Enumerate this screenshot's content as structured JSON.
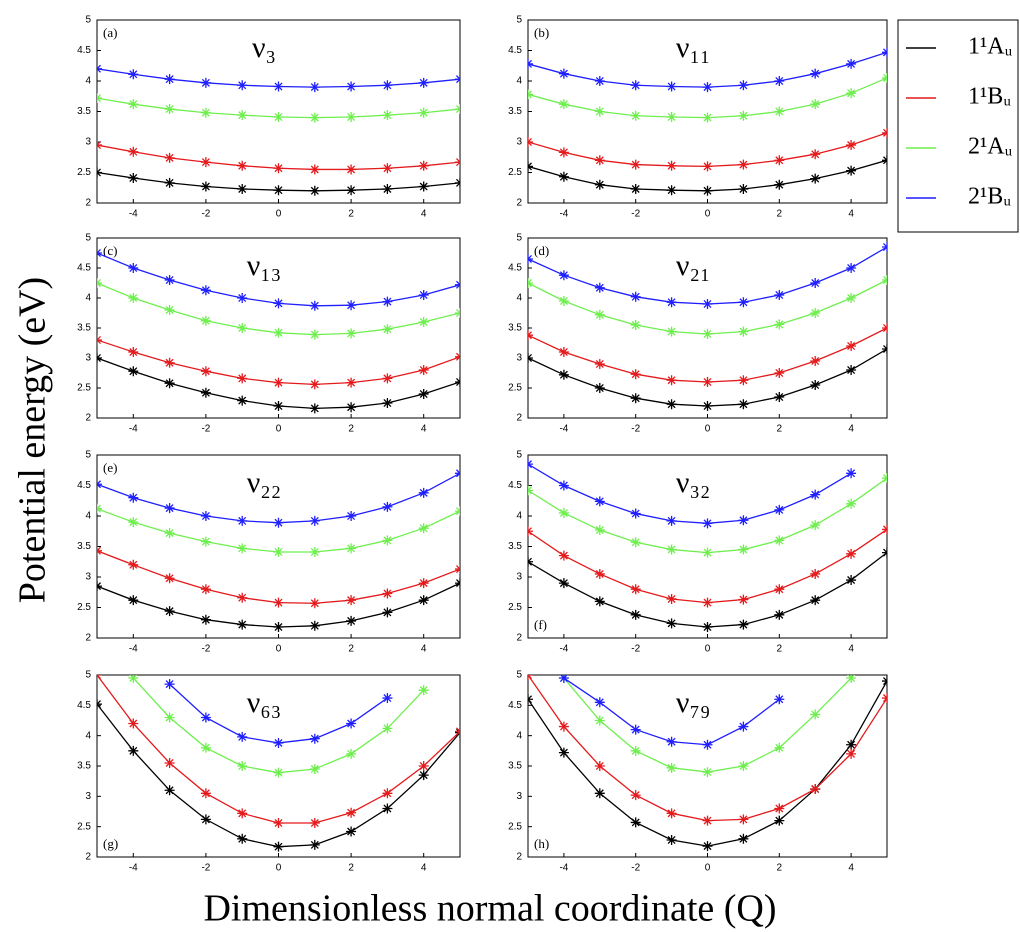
{
  "ylabel": "Potential energy (eV)",
  "xlabel": "Dimensionless normal coordinate (Q)",
  "chart_data": [
    {
      "type": "line",
      "title": "ν₃",
      "label": "(a)",
      "label_position": "top-left",
      "markers": "asterisk",
      "x": [
        -5,
        -4,
        -3,
        -2,
        -1,
        0,
        1,
        2,
        3,
        4,
        5
      ],
      "xlim": [
        -5,
        5
      ],
      "xticks": [
        -4,
        -2,
        0,
        2,
        4
      ],
      "ylim": [
        2,
        5
      ],
      "yticks": [
        2,
        2.5,
        3,
        3.5,
        4,
        4.5,
        5
      ],
      "series": [
        {
          "name": "1¹Aᵤ",
          "color": "#000000",
          "values": [
            2.5,
            2.41,
            2.33,
            2.27,
            2.23,
            2.21,
            2.2,
            2.21,
            2.23,
            2.27,
            2.33
          ]
        },
        {
          "name": "1¹Bᵤ",
          "color": "#e41a1c",
          "values": [
            2.95,
            2.84,
            2.74,
            2.67,
            2.61,
            2.57,
            2.55,
            2.55,
            2.57,
            2.61,
            2.67
          ]
        },
        {
          "name": "2¹Aᵤ",
          "color": "#6fef4f",
          "values": [
            3.72,
            3.62,
            3.54,
            3.48,
            3.44,
            3.41,
            3.4,
            3.41,
            3.44,
            3.48,
            3.54
          ]
        },
        {
          "name": "2¹Bᵤ",
          "color": "#1f1fff",
          "values": [
            4.2,
            4.11,
            4.03,
            3.97,
            3.93,
            3.91,
            3.9,
            3.91,
            3.93,
            3.97,
            4.03
          ]
        }
      ]
    },
    {
      "type": "line",
      "title": "ν₁₁",
      "label": "(b)",
      "label_position": "top-left",
      "markers": "asterisk",
      "x": [
        -5,
        -4,
        -3,
        -2,
        -1,
        0,
        1,
        2,
        3,
        4,
        5
      ],
      "xlim": [
        -5,
        5
      ],
      "xticks": [
        -4,
        -2,
        0,
        2,
        4
      ],
      "ylim": [
        2,
        5
      ],
      "yticks": [
        2,
        2.5,
        3,
        3.5,
        4,
        4.5,
        5
      ],
      "series": [
        {
          "name": "1¹Aᵤ",
          "color": "#000000",
          "values": [
            2.6,
            2.43,
            2.3,
            2.23,
            2.21,
            2.2,
            2.23,
            2.3,
            2.4,
            2.53,
            2.7
          ]
        },
        {
          "name": "1¹Bᵤ",
          "color": "#e41a1c",
          "values": [
            3.0,
            2.83,
            2.7,
            2.63,
            2.61,
            2.6,
            2.63,
            2.7,
            2.8,
            2.95,
            3.15
          ]
        },
        {
          "name": "2¹Aᵤ",
          "color": "#6fef4f",
          "values": [
            3.78,
            3.62,
            3.5,
            3.43,
            3.41,
            3.4,
            3.43,
            3.5,
            3.62,
            3.8,
            4.05
          ]
        },
        {
          "name": "2¹Bᵤ",
          "color": "#1f1fff",
          "values": [
            4.28,
            4.12,
            4.0,
            3.93,
            3.91,
            3.9,
            3.93,
            4.0,
            4.12,
            4.28,
            4.47
          ]
        }
      ]
    },
    {
      "type": "line",
      "title": "ν₁₃",
      "label": "(c)",
      "label_position": "top-left",
      "markers": "asterisk",
      "x": [
        -5,
        -4,
        -3,
        -2,
        -1,
        0,
        1,
        2,
        3,
        4,
        5
      ],
      "xlim": [
        -5,
        5
      ],
      "xticks": [
        -4,
        -2,
        0,
        2,
        4
      ],
      "ylim": [
        2,
        5
      ],
      "yticks": [
        2,
        2.5,
        3,
        3.5,
        4,
        4.5,
        5
      ],
      "series": [
        {
          "name": "1¹Aᵤ",
          "color": "#000000",
          "values": [
            3.0,
            2.78,
            2.58,
            2.42,
            2.29,
            2.2,
            2.16,
            2.18,
            2.25,
            2.4,
            2.6
          ]
        },
        {
          "name": "1¹Bᵤ",
          "color": "#e41a1c",
          "values": [
            3.3,
            3.1,
            2.92,
            2.78,
            2.66,
            2.59,
            2.56,
            2.59,
            2.66,
            2.8,
            3.02
          ]
        },
        {
          "name": "2¹Aᵤ",
          "color": "#6fef4f",
          "values": [
            4.25,
            4.0,
            3.8,
            3.62,
            3.5,
            3.42,
            3.39,
            3.41,
            3.48,
            3.6,
            3.75
          ]
        },
        {
          "name": "2¹Bᵤ",
          "color": "#1f1fff",
          "values": [
            4.75,
            4.5,
            4.3,
            4.13,
            4.0,
            3.91,
            3.87,
            3.88,
            3.94,
            4.05,
            4.22
          ]
        }
      ]
    },
    {
      "type": "line",
      "title": "ν₂₁",
      "label": "(d)",
      "label_position": "top-left",
      "markers": "asterisk",
      "x": [
        -5,
        -4,
        -3,
        -2,
        -1,
        0,
        1,
        2,
        3,
        4,
        5
      ],
      "xlim": [
        -5,
        5
      ],
      "xticks": [
        -4,
        -2,
        0,
        2,
        4
      ],
      "ylim": [
        2,
        5
      ],
      "yticks": [
        2,
        2.5,
        3,
        3.5,
        4,
        4.5,
        5
      ],
      "series": [
        {
          "name": "1¹Aᵤ",
          "color": "#000000",
          "values": [
            3.0,
            2.72,
            2.5,
            2.33,
            2.23,
            2.2,
            2.23,
            2.35,
            2.55,
            2.8,
            3.15
          ]
        },
        {
          "name": "1¹Bᵤ",
          "color": "#e41a1c",
          "values": [
            3.38,
            3.1,
            2.9,
            2.73,
            2.63,
            2.6,
            2.63,
            2.75,
            2.95,
            3.2,
            3.5
          ]
        },
        {
          "name": "2¹Aᵤ",
          "color": "#6fef4f",
          "values": [
            4.25,
            3.95,
            3.72,
            3.55,
            3.44,
            3.4,
            3.44,
            3.56,
            3.75,
            4.0,
            4.3
          ]
        },
        {
          "name": "2¹Bᵤ",
          "color": "#1f1fff",
          "values": [
            4.65,
            4.38,
            4.17,
            4.02,
            3.93,
            3.9,
            3.93,
            4.05,
            4.25,
            4.5,
            4.85
          ]
        }
      ]
    },
    {
      "type": "line",
      "title": "ν₂₂",
      "label": "(e)",
      "label_position": "top-left",
      "markers": "asterisk",
      "x": [
        -5,
        -4,
        -3,
        -2,
        -1,
        0,
        1,
        2,
        3,
        4,
        5
      ],
      "xlim": [
        -5,
        5
      ],
      "xticks": [
        -4,
        -2,
        0,
        2,
        4
      ],
      "ylim": [
        2,
        5
      ],
      "yticks": [
        2,
        2.5,
        3,
        3.5,
        4,
        4.5,
        5
      ],
      "series": [
        {
          "name": "1¹Aᵤ",
          "color": "#000000",
          "values": [
            2.85,
            2.62,
            2.44,
            2.3,
            2.22,
            2.18,
            2.2,
            2.28,
            2.42,
            2.62,
            2.9
          ]
        },
        {
          "name": "1¹Bᵤ",
          "color": "#e41a1c",
          "values": [
            3.43,
            3.2,
            2.98,
            2.8,
            2.66,
            2.58,
            2.57,
            2.62,
            2.73,
            2.9,
            3.13
          ]
        },
        {
          "name": "2¹Aᵤ",
          "color": "#6fef4f",
          "values": [
            4.12,
            3.9,
            3.72,
            3.58,
            3.47,
            3.41,
            3.41,
            3.47,
            3.6,
            3.8,
            4.08
          ]
        },
        {
          "name": "2¹Bᵤ",
          "color": "#1f1fff",
          "values": [
            4.52,
            4.3,
            4.13,
            4.0,
            3.92,
            3.89,
            3.92,
            4.0,
            4.15,
            4.38,
            4.7
          ]
        }
      ]
    },
    {
      "type": "line",
      "title": "ν₃₂",
      "label": "(f)",
      "label_position": "bottom-left",
      "markers": "asterisk",
      "x": [
        -5,
        -4,
        -3,
        -2,
        -1,
        0,
        1,
        2,
        3,
        4,
        5
      ],
      "xlim": [
        -5,
        5
      ],
      "xticks": [
        -4,
        -2,
        0,
        2,
        4
      ],
      "ylim": [
        2,
        5
      ],
      "yticks": [
        2,
        2.5,
        3,
        3.5,
        4,
        4.5,
        5
      ],
      "series": [
        {
          "name": "1¹Aᵤ",
          "color": "#000000",
          "values": [
            3.25,
            2.9,
            2.6,
            2.38,
            2.24,
            2.18,
            2.22,
            2.38,
            2.62,
            2.95,
            3.4
          ]
        },
        {
          "name": "1¹Bᵤ",
          "color": "#e41a1c",
          "values": [
            3.75,
            3.35,
            3.05,
            2.8,
            2.64,
            2.58,
            2.63,
            2.8,
            3.05,
            3.38,
            3.78
          ]
        },
        {
          "name": "2¹Aᵤ",
          "color": "#6fef4f",
          "values": [
            4.42,
            4.05,
            3.77,
            3.57,
            3.45,
            3.4,
            3.45,
            3.6,
            3.85,
            4.2,
            4.62
          ]
        },
        {
          "name": "2¹Bᵤ",
          "color": "#1f1fff",
          "values": [
            4.85,
            4.5,
            4.24,
            4.04,
            3.92,
            3.88,
            3.93,
            4.1,
            4.35,
            4.7,
            null
          ]
        }
      ]
    },
    {
      "type": "line",
      "title": "ν₆₃",
      "label": "(g)",
      "label_position": "bottom-left",
      "markers": "asterisk",
      "x": [
        -5,
        -4,
        -3,
        -2,
        -1,
        0,
        1,
        2,
        3,
        4,
        5
      ],
      "xlim": [
        -5,
        5
      ],
      "xticks": [
        -4,
        -2,
        0,
        2,
        4
      ],
      "ylim": [
        2,
        5
      ],
      "yticks": [
        2,
        2.5,
        3,
        3.5,
        4,
        4.5,
        5
      ],
      "series": [
        {
          "name": "1¹Aᵤ",
          "color": "#000000",
          "values": [
            4.52,
            3.75,
            3.1,
            2.62,
            2.3,
            2.17,
            2.2,
            2.42,
            2.8,
            3.35,
            4.05
          ]
        },
        {
          "name": "1¹Bᵤ",
          "color": "#e41a1c",
          "values": [
            5.0,
            4.2,
            3.55,
            3.05,
            2.72,
            2.56,
            2.56,
            2.73,
            3.05,
            3.5,
            4.07
          ]
        },
        {
          "name": "2¹Aᵤ",
          "color": "#6fef4f",
          "values": [
            null,
            4.95,
            4.3,
            3.8,
            3.5,
            3.39,
            3.45,
            3.7,
            4.12,
            4.75,
            null
          ]
        },
        {
          "name": "2¹Bᵤ",
          "color": "#1f1fff",
          "values": [
            null,
            null,
            4.85,
            4.3,
            3.98,
            3.88,
            3.95,
            4.2,
            4.62,
            null,
            null
          ]
        }
      ]
    },
    {
      "type": "line",
      "title": "ν₇₉",
      "label": "(h)",
      "label_position": "bottom-left",
      "markers": "asterisk",
      "x": [
        -5,
        -4,
        -3,
        -2,
        -1,
        0,
        1,
        2,
        3,
        4,
        5
      ],
      "xlim": [
        -5,
        5
      ],
      "xticks": [
        -4,
        -2,
        0,
        2,
        4
      ],
      "ylim": [
        2,
        5
      ],
      "yticks": [
        2,
        2.5,
        3,
        3.5,
        4,
        4.5,
        5
      ],
      "series": [
        {
          "name": "1¹Aᵤ",
          "color": "#000000",
          "values": [
            4.6,
            3.72,
            3.05,
            2.57,
            2.28,
            2.18,
            2.3,
            2.6,
            3.12,
            3.85,
            4.9
          ]
        },
        {
          "name": "1¹Bᵤ",
          "color": "#e41a1c",
          "values": [
            5.0,
            4.15,
            3.5,
            3.02,
            2.72,
            2.6,
            2.62,
            2.8,
            3.12,
            3.7,
            4.62
          ]
        },
        {
          "name": "2¹Aᵤ",
          "color": "#6fef4f",
          "values": [
            null,
            4.95,
            4.25,
            3.75,
            3.47,
            3.4,
            3.5,
            3.8,
            4.35,
            4.95,
            null
          ]
        },
        {
          "name": "2¹Bᵤ",
          "color": "#1f1fff",
          "values": [
            null,
            4.95,
            4.55,
            4.1,
            3.9,
            3.85,
            4.15,
            4.6,
            null,
            null,
            null
          ]
        }
      ]
    }
  ]
}
